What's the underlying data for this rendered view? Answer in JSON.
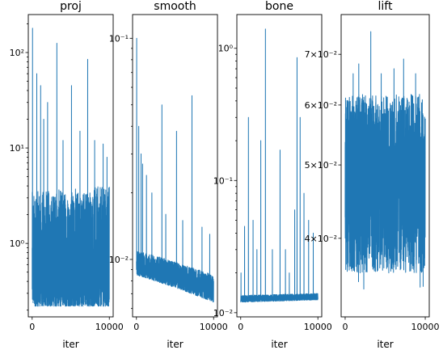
{
  "chart_data": [
    {
      "type": "line",
      "title": "proj",
      "xlabel": "iter",
      "ylabel": "",
      "yscale": "log",
      "xlim": [
        -500,
        10500
      ],
      "ylim": [
        0.17,
        250
      ],
      "xticks": [
        0,
        10000
      ],
      "xtick_labels": [
        "0",
        "10000"
      ],
      "yticks": [
        1,
        10,
        100
      ],
      "ytick_labels": [
        "10⁰",
        "10¹",
        "10²"
      ],
      "color": "#1f77b4",
      "n_points": 1600,
      "baseline": [
        0.22,
        0.22
      ],
      "band_top": [
        3.5,
        4.0
      ],
      "noise_scale": 1.6,
      "spikes": [
        [
          50,
          180
        ],
        [
          600,
          60
        ],
        [
          1100,
          45
        ],
        [
          1500,
          20
        ],
        [
          2000,
          30
        ],
        [
          3200,
          125
        ],
        [
          4000,
          12
        ],
        [
          5100,
          45
        ],
        [
          6200,
          15
        ],
        [
          7200,
          85
        ],
        [
          8100,
          12
        ],
        [
          9200,
          11
        ],
        [
          9700,
          8
        ]
      ]
    },
    {
      "type": "line",
      "title": "smooth",
      "xlabel": "iter",
      "ylabel": "",
      "yscale": "log",
      "xlim": [
        -500,
        10500
      ],
      "ylim": [
        0.0055,
        0.128
      ],
      "xticks": [
        0,
        10000
      ],
      "xtick_labels": [
        "0",
        "10000"
      ],
      "yticks": [
        0.01,
        0.1
      ],
      "ytick_labels": [
        "10⁻²",
        "10⁻¹"
      ],
      "color": "#1f77b4",
      "n_points": 1600,
      "baseline": [
        0.0085,
        0.0064
      ],
      "band_top": [
        0.011,
        0.0085
      ],
      "noise_scale": 1.3,
      "spikes": [
        [
          30,
          0.1
        ],
        [
          300,
          0.04
        ],
        [
          600,
          0.03
        ],
        [
          800,
          0.027
        ],
        [
          1300,
          0.024
        ],
        [
          2000,
          0.02
        ],
        [
          3300,
          0.05
        ],
        [
          3800,
          0.016
        ],
        [
          5200,
          0.038
        ],
        [
          6000,
          0.015
        ],
        [
          7200,
          0.055
        ],
        [
          8500,
          0.014
        ],
        [
          9500,
          0.013
        ]
      ]
    },
    {
      "type": "line",
      "title": "bone",
      "xlabel": "iter",
      "ylabel": "",
      "yscale": "log",
      "xlim": [
        -500,
        10500
      ],
      "ylim": [
        0.0093,
        1.8
      ],
      "xticks": [
        0,
        10000
      ],
      "xtick_labels": [
        "0",
        "10000"
      ],
      "yticks": [
        0.01,
        0.1,
        1
      ],
      "ytick_labels": [
        "10⁻²",
        "10⁻¹",
        "10⁰"
      ],
      "color": "#1f77b4",
      "n_points": 1600,
      "baseline": [
        0.012,
        0.0125
      ],
      "band_top": [
        0.0135,
        0.014
      ],
      "noise_scale": 1.1,
      "spikes": [
        [
          40,
          0.02
        ],
        [
          500,
          0.045
        ],
        [
          1000,
          0.3
        ],
        [
          1600,
          0.05
        ],
        [
          2100,
          0.03
        ],
        [
          2600,
          0.2
        ],
        [
          3200,
          1.4
        ],
        [
          4100,
          0.03
        ],
        [
          5100,
          0.17
        ],
        [
          5800,
          0.03
        ],
        [
          6300,
          0.02
        ],
        [
          7000,
          0.06
        ],
        [
          7300,
          0.85
        ],
        [
          7700,
          0.3
        ],
        [
          8200,
          0.08
        ],
        [
          8800,
          0.05
        ],
        [
          9400,
          0.04
        ]
      ]
    },
    {
      "type": "line",
      "title": "lift",
      "xlabel": "iter",
      "ylabel": "",
      "yscale": "log",
      "xlim": [
        -500,
        10500
      ],
      "ylim": [
        0.0315,
        0.079
      ],
      "xticks": [
        0,
        10000
      ],
      "xtick_labels": [
        "0",
        "10000"
      ],
      "yticks": [
        0.04,
        0.05,
        0.06,
        0.07
      ],
      "ytick_labels": [
        "4×10⁻²",
        "5×10⁻²",
        "6×10⁻²",
        "7×10⁻²"
      ],
      "color": "#1f77b4",
      "n_points": 1600,
      "band_low": [
        0.036,
        0.036
      ],
      "band_high": [
        0.062,
        0.062
      ],
      "min_dip": 0.0335,
      "spikes": [
        [
          1000,
          0.066
        ],
        [
          1700,
          0.068
        ],
        [
          3200,
          0.075
        ],
        [
          4500,
          0.066
        ],
        [
          6100,
          0.067
        ],
        [
          7300,
          0.069
        ],
        [
          8800,
          0.066
        ]
      ]
    }
  ]
}
